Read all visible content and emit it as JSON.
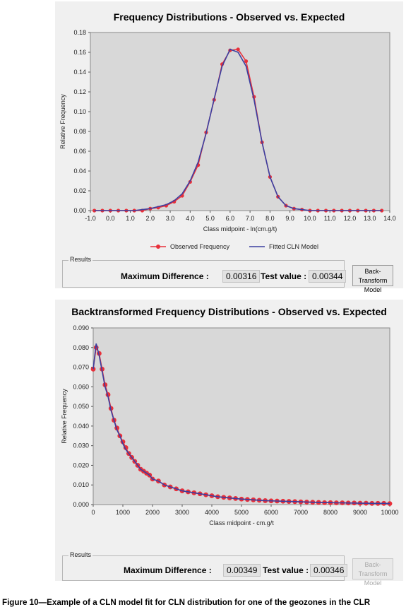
{
  "chart_data": [
    {
      "type": "line",
      "title": "Frequency Distributions - Observed vs. Expected",
      "xlabel": "Class midpoint - ln(cm.g/t)",
      "ylabel": "Relative Frequency",
      "xlim": [
        -1.0,
        14.0
      ],
      "ylim": [
        0,
        0.18
      ],
      "x_ticks": [
        "-1.0",
        "0.0",
        "1.0",
        "2.0",
        "3.0",
        "4.0",
        "5.0",
        "6.0",
        "7.0",
        "8.0",
        "9.0",
        "10.0",
        "11.0",
        "12.0",
        "13.0",
        "14.0"
      ],
      "y_ticks": [
        "0.00",
        "0.02",
        "0.04",
        "0.06",
        "0.08",
        "0.10",
        "0.12",
        "0.14",
        "0.16",
        "0.18"
      ],
      "grid": false,
      "legend": "bottom",
      "series": [
        {
          "name": "Observed Frequency",
          "color": "#e8303a",
          "marker": "circle",
          "x": [
            -0.8,
            -0.4,
            0.0,
            0.4,
            0.8,
            1.2,
            1.6,
            2.0,
            2.4,
            2.8,
            3.2,
            3.6,
            4.0,
            4.4,
            4.8,
            5.2,
            5.6,
            6.0,
            6.4,
            6.8,
            7.2,
            7.6,
            8.0,
            8.4,
            8.8,
            9.2,
            9.6,
            10.0,
            10.4,
            10.8,
            11.2,
            11.6,
            12.0,
            12.4,
            12.8,
            13.2,
            13.6
          ],
          "y": [
            0.0,
            0.0,
            0.0,
            0.0,
            0.0,
            0.0,
            0.0,
            0.002,
            0.003,
            0.005,
            0.009,
            0.015,
            0.029,
            0.046,
            0.079,
            0.112,
            0.148,
            0.162,
            0.163,
            0.151,
            0.115,
            0.069,
            0.034,
            0.014,
            0.005,
            0.002,
            0.001,
            0.0,
            0.0,
            0.0,
            0.0,
            0.0,
            0.0,
            0.0,
            0.0,
            0.0,
            0.0
          ]
        },
        {
          "name": "Fitted CLN Model",
          "color": "#3b3fa0",
          "marker": "none",
          "x": [
            -0.8,
            -0.4,
            0.0,
            0.4,
            0.8,
            1.2,
            1.6,
            2.0,
            2.4,
            2.8,
            3.2,
            3.6,
            4.0,
            4.4,
            4.8,
            5.2,
            5.6,
            6.0,
            6.4,
            6.8,
            7.2,
            7.6,
            8.0,
            8.4,
            8.8,
            9.2,
            9.6,
            10.0,
            10.4,
            10.8,
            11.2,
            11.6,
            12.0,
            12.4,
            12.8,
            13.2,
            13.6
          ],
          "y": [
            0.0,
            0.0,
            0.0,
            0.0,
            0.0,
            0.0,
            0.001,
            0.002,
            0.004,
            0.006,
            0.01,
            0.017,
            0.03,
            0.049,
            0.078,
            0.113,
            0.146,
            0.163,
            0.16,
            0.146,
            0.112,
            0.069,
            0.034,
            0.014,
            0.005,
            0.002,
            0.001,
            0.0,
            0.0,
            0.0,
            0.0,
            0.0,
            0.0,
            0.0,
            0.0,
            0.0,
            0.0
          ]
        }
      ]
    },
    {
      "type": "line",
      "title": "Backtransformed Frequency Distributions - Observed vs. Expected",
      "xlabel": "Class midpoint - cm.g/t",
      "ylabel": "Relative Frequency",
      "xlim": [
        0,
        10000
      ],
      "ylim": [
        0,
        0.09
      ],
      "x_ticks": [
        "0",
        "1000",
        "2000",
        "3000",
        "4000",
        "5000",
        "6000",
        "7000",
        "8000",
        "9000",
        "10000"
      ],
      "y_ticks": [
        "0.000",
        "0.010",
        "0.020",
        "0.030",
        "0.040",
        "0.050",
        "0.060",
        "0.070",
        "0.080",
        "0.090"
      ],
      "grid": false,
      "legend": "none",
      "series": [
        {
          "name": "Observed Frequency",
          "color": "#e8303a",
          "marker": "circle",
          "x": [
            0,
            100,
            200,
            300,
            400,
            500,
            600,
            700,
            800,
            900,
            1000,
            1100,
            1200,
            1300,
            1400,
            1500,
            1600,
            1700,
            1800,
            1900,
            2000,
            2200,
            2400,
            2600,
            2800,
            3000,
            3200,
            3400,
            3600,
            3800,
            4000,
            4200,
            4400,
            4600,
            4800,
            5000,
            5200,
            5400,
            5600,
            5800,
            6000,
            6200,
            6400,
            6600,
            6800,
            7000,
            7200,
            7400,
            7600,
            7800,
            8000,
            8200,
            8400,
            8600,
            8800,
            9000,
            9200,
            9400,
            9600,
            9800,
            10000
          ],
          "y": [
            0.069,
            0.08,
            0.077,
            0.069,
            0.061,
            0.056,
            0.049,
            0.043,
            0.039,
            0.035,
            0.032,
            0.029,
            0.026,
            0.024,
            0.022,
            0.02,
            0.018,
            0.017,
            0.016,
            0.015,
            0.013,
            0.012,
            0.01,
            0.009,
            0.008,
            0.007,
            0.0065,
            0.006,
            0.0055,
            0.005,
            0.0045,
            0.004,
            0.0037,
            0.0034,
            0.0031,
            0.0028,
            0.0026,
            0.0024,
            0.0022,
            0.002,
            0.0019,
            0.0018,
            0.0017,
            0.0016,
            0.0015,
            0.0014,
            0.0013,
            0.0012,
            0.0011,
            0.001,
            0.001,
            0.0009,
            0.0009,
            0.0008,
            0.0008,
            0.0007,
            0.0007,
            0.0006,
            0.0006,
            0.0006,
            0.0005
          ]
        },
        {
          "name": "Fitted CLN Model",
          "color": "#3b3fa0",
          "marker": "none",
          "x": [
            0,
            100,
            200,
            300,
            400,
            500,
            600,
            700,
            800,
            900,
            1000,
            1100,
            1200,
            1300,
            1400,
            1500,
            1600,
            1700,
            1800,
            1900,
            2000,
            2200,
            2400,
            2600,
            2800,
            3000,
            3200,
            3400,
            3600,
            3800,
            4000,
            4200,
            4400,
            4600,
            4800,
            5000,
            5200,
            5400,
            5600,
            5800,
            6000,
            6200,
            6400,
            6600,
            6800,
            7000,
            7200,
            7400,
            7600,
            7800,
            8000,
            8200,
            8400,
            8600,
            8800,
            9000,
            9200,
            9400,
            9600,
            9800,
            10000
          ],
          "y": [
            0.069,
            0.082,
            0.076,
            0.068,
            0.06,
            0.055,
            0.048,
            0.043,
            0.038,
            0.035,
            0.031,
            0.028,
            0.026,
            0.024,
            0.022,
            0.02,
            0.018,
            0.017,
            0.016,
            0.015,
            0.013,
            0.012,
            0.01,
            0.009,
            0.008,
            0.007,
            0.0065,
            0.006,
            0.0055,
            0.005,
            0.0045,
            0.004,
            0.0037,
            0.0034,
            0.0031,
            0.0028,
            0.0026,
            0.0024,
            0.0022,
            0.002,
            0.0019,
            0.0018,
            0.0017,
            0.0016,
            0.0015,
            0.0014,
            0.0013,
            0.0012,
            0.0011,
            0.001,
            0.001,
            0.0009,
            0.0009,
            0.0008,
            0.0008,
            0.0007,
            0.0007,
            0.0006,
            0.0006,
            0.0006,
            0.0005
          ]
        }
      ]
    }
  ],
  "panels": [
    {
      "results_label": "Results",
      "max_diff_label": "Maximum Difference :",
      "max_diff_value": "0.00316",
      "test_value_label": "Test value :",
      "test_value": "0.00344",
      "button_line1": "Back-Transform",
      "button_line2": "Model",
      "button_enabled": true
    },
    {
      "results_label": "Results",
      "max_diff_label": "Maximum Difference :",
      "max_diff_value": "0.00349",
      "test_value_label": "Test value :",
      "test_value": "0.00346",
      "button_line1": "Back-Transform",
      "button_line2": "Model",
      "button_enabled": false
    }
  ],
  "caption": "Figure 10—Example of a CLN model fit for CLN distribution for one of the geozones in the CLR"
}
